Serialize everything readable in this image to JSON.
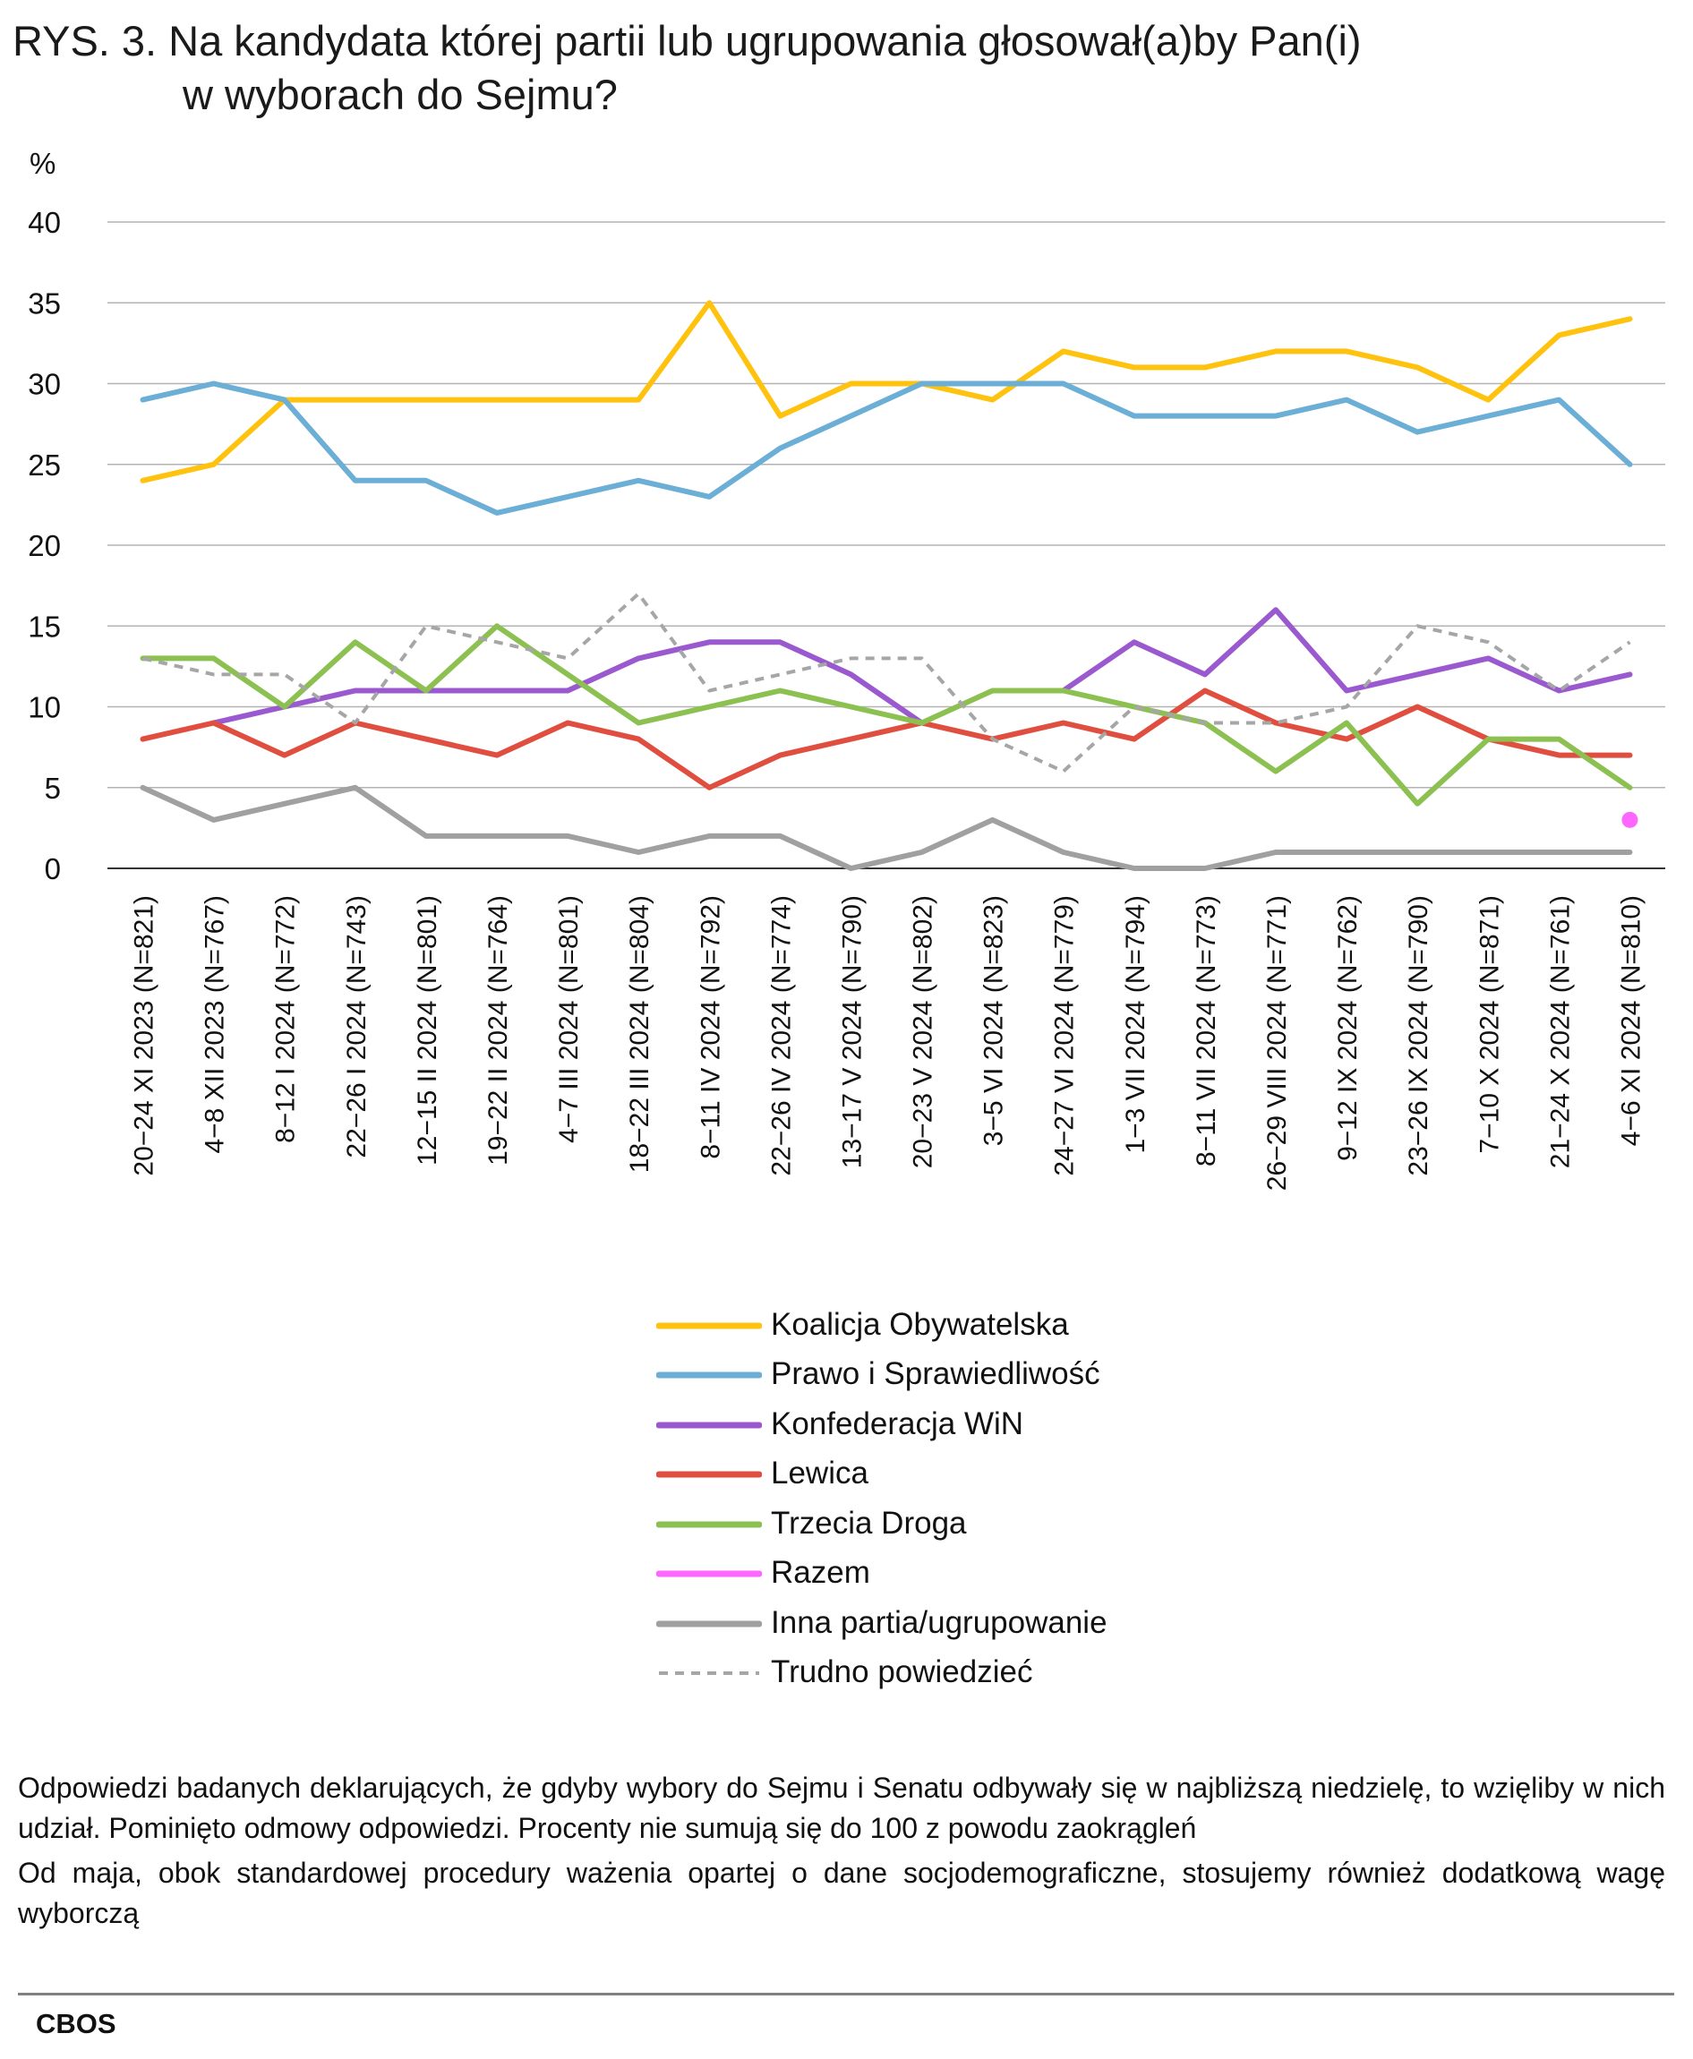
{
  "title": {
    "line1": "RYS. 3. Na kandydata której partii lub ugrupowania głosował(a)by Pan(i)",
    "line2": "w wyborach do Sejmu?"
  },
  "chart_data": {
    "type": "line",
    "ylabel": "%",
    "ylim": [
      0,
      40
    ],
    "yticks": [
      0,
      5,
      10,
      15,
      20,
      25,
      30,
      35,
      40
    ],
    "grid": true,
    "legend_position": "bottom",
    "categories": [
      "20−24 XI 2023 (N=821)",
      "4−8 XII 2023 (N=767)",
      "8−12 I 2024 (N=772)",
      "22−26 I 2024 (N=743)",
      "12−15 II 2024 (N=801)",
      "19−22 II 2024 (N=764)",
      "4−7 III 2024 (N=801)",
      "18−22 III 2024 (N=804)",
      "8−11 IV 2024 (N=792)",
      "22−26 IV 2024 (N=774)",
      "13−17 V 2024 (N=790)",
      "20−23 V 2024 (N=802)",
      "3−5 VI 2024 (N=823)",
      "24−27 VI 2024 (N=779)",
      "1−3 VII 2024 (N=794)",
      "8−11 VII 2024 (N=773)",
      "26−29 VIII 2024 (N=771)",
      "9−12 IX 2024 (N=762)",
      "23−26 IX 2024 (N=790)",
      "7−10 X 2024 (N=871)",
      "21−24 X 2024 (N=761)",
      "4−6 XI 2024 (N=810)"
    ],
    "series": [
      {
        "name": "Koalicja Obywatelska",
        "color": "#FFC20E",
        "dashed": false,
        "values": [
          24,
          25,
          29,
          29,
          29,
          29,
          29,
          29,
          35,
          28,
          30,
          30,
          29,
          32,
          31,
          31,
          32,
          32,
          31,
          29,
          33,
          34
        ]
      },
      {
        "name": "Prawo i Sprawiedliwość",
        "color": "#6BAED6",
        "dashed": false,
        "values": [
          29,
          30,
          29,
          24,
          24,
          22,
          23,
          24,
          23,
          26,
          28,
          30,
          30,
          30,
          28,
          28,
          28,
          29,
          27,
          28,
          29,
          25
        ]
      },
      {
        "name": "Konfederacja WiN",
        "color": "#9B59D0",
        "dashed": false,
        "values": [
          null,
          9,
          10,
          11,
          11,
          11,
          11,
          13,
          14,
          14,
          12,
          9,
          null,
          11,
          14,
          12,
          16,
          11,
          12,
          13,
          11,
          12
        ]
      },
      {
        "name": "Lewica",
        "color": "#E04E3F",
        "dashed": false,
        "values": [
          8,
          9,
          7,
          9,
          8,
          7,
          9,
          8,
          5,
          7,
          8,
          9,
          8,
          9,
          8,
          11,
          9,
          8,
          10,
          8,
          7,
          7
        ]
      },
      {
        "name": "Trzecia Droga",
        "color": "#8CC152",
        "dashed": false,
        "values": [
          13,
          13,
          10,
          14,
          11,
          15,
          12,
          9,
          10,
          11,
          10,
          9,
          11,
          11,
          10,
          9,
          6,
          9,
          4,
          8,
          8,
          5
        ]
      },
      {
        "name": "Razem",
        "color": "#FF66FF",
        "dashed": false,
        "values": [
          null,
          null,
          null,
          null,
          null,
          null,
          null,
          null,
          null,
          null,
          null,
          null,
          null,
          null,
          null,
          null,
          null,
          null,
          null,
          null,
          null,
          3
        ]
      },
      {
        "name": "Inna partia/ugrupowanie",
        "color": "#A0A0A0",
        "dashed": false,
        "values": [
          5,
          3,
          4,
          5,
          2,
          2,
          2,
          1,
          2,
          2,
          0,
          1,
          3,
          1,
          0,
          0,
          1,
          1,
          1,
          1,
          1,
          1
        ]
      },
      {
        "name": "Trudno powiedzieć",
        "color": "#A6A6A6",
        "dashed": true,
        "values": [
          13,
          12,
          12,
          9,
          15,
          14,
          13,
          17,
          11,
          12,
          13,
          13,
          8,
          6,
          10,
          9,
          9,
          10,
          15,
          14,
          11,
          14
        ]
      }
    ]
  },
  "notes": {
    "note1": "Odpowiedzi badanych deklarujących, że gdyby wybory do Sejmu i Senatu odbywały się w najbliższą niedzielę, to wzięliby w nich udział. Pominięto odmowy odpowiedzi. Procenty nie sumują się do 100 z powodu zaokrągleń",
    "note2": "Od maja, obok standardowej procedury ważenia opartej o dane socjodemograficzne, stosujemy również dodatkową wagę wyborczą"
  },
  "source": "CBOS"
}
